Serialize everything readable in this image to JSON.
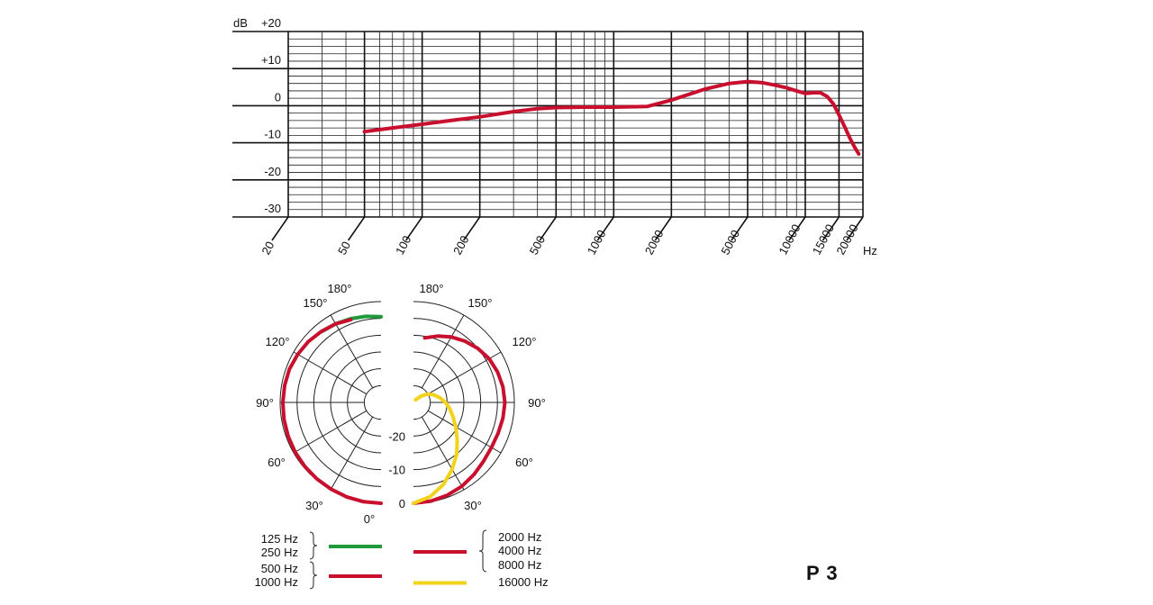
{
  "chart_data": [
    {
      "type": "line",
      "title": "",
      "ylabel": "dB",
      "xlabel": "Hz",
      "x_scale": "log",
      "xlim": [
        20,
        20000
      ],
      "ylim": [
        -30,
        20
      ],
      "y_ticks": [
        "+20",
        "+10",
        "0",
        "-10",
        "-20",
        "-30"
      ],
      "x_ticks": [
        "20",
        "50",
        "100",
        "200",
        "500",
        "1000",
        "2000",
        "5000",
        "10000",
        "15000",
        "20000"
      ],
      "grid": true,
      "series": [
        {
          "color": "#c8102e",
          "x": [
            50,
            70,
            100,
            150,
            200,
            300,
            400,
            500,
            700,
            1000,
            1500,
            2000,
            3000,
            4000,
            5000,
            6000,
            7000,
            8000,
            9000,
            10000,
            11000,
            12000,
            13000,
            14000,
            15000,
            16000,
            17000,
            18000,
            19000
          ],
          "y": [
            -7,
            -6,
            -5,
            -3.8,
            -3,
            -1.6,
            -0.8,
            -0.5,
            -0.4,
            -0.4,
            -0.2,
            1.5,
            4.5,
            6,
            6.5,
            6.2,
            5.5,
            4.8,
            4.0,
            3.3,
            3.5,
            3.5,
            2.5,
            0.5,
            -2.5,
            -5.5,
            -8.5,
            -11,
            -13
          ]
        }
      ]
    },
    {
      "type": "polar",
      "angle_labels_left": [
        "180°",
        "150°",
        "120°",
        "90°",
        "60°",
        "30°",
        "0°"
      ],
      "angle_labels_right": [
        "180°",
        "150°",
        "120°",
        "90°",
        "60°",
        "30°"
      ],
      "radial_labels": [
        "-20",
        "-10",
        "0"
      ],
      "series": [
        {
          "side": "left",
          "color": "#1f9a3a",
          "angles_deg": [
            140,
            150,
            160,
            170,
            180
          ],
          "level_db": [
            -2.5,
            -3,
            -3.5,
            -4,
            -4.5
          ]
        },
        {
          "side": "left",
          "color": "#c8102e",
          "angles_deg": [
            0,
            10,
            20,
            30,
            40,
            50,
            60,
            70,
            80,
            90,
            100,
            110,
            120,
            130,
            140,
            150,
            160
          ],
          "level_db": [
            0,
            0,
            -0.1,
            -0.2,
            -0.3,
            -0.4,
            -0.5,
            -0.6,
            -0.7,
            -0.8,
            -0.9,
            -1,
            -1.4,
            -1.8,
            -2.4,
            -3,
            -3.8
          ]
        },
        {
          "side": "right",
          "color": "#c8102e",
          "angles_deg": [
            0,
            10,
            20,
            30,
            40,
            50,
            60,
            70,
            80,
            90,
            100,
            110,
            120,
            130,
            140,
            150,
            160,
            170
          ],
          "level_db": [
            0,
            -0.2,
            -0.6,
            -1.2,
            -2,
            -2.8,
            -3.2,
            -3.2,
            -3,
            -2.8,
            -3,
            -3.4,
            -4,
            -5,
            -6.2,
            -7.5,
            -9,
            -10.5
          ]
        },
        {
          "side": "right",
          "color": "#f2d21a",
          "angles_deg": [
            0,
            10,
            20,
            30,
            40,
            50,
            60,
            70,
            80,
            90,
            100,
            110,
            120,
            130,
            140
          ],
          "level_db": [
            0,
            -1.5,
            -4,
            -7,
            -10,
            -13,
            -15.5,
            -17.5,
            -19,
            -20.5,
            -22,
            -23.5,
            -25,
            -27,
            -29
          ]
        }
      ],
      "legend": [
        {
          "labels": [
            "125 Hz",
            "250 Hz"
          ],
          "color": "#1f9a3a",
          "side": "left"
        },
        {
          "labels": [
            "500 Hz",
            "1000 Hz"
          ],
          "color": "#c8102e",
          "side": "left"
        },
        {
          "labels": [
            "2000 Hz",
            "4000 Hz",
            "8000 Hz"
          ],
          "color": "#c8102e",
          "side": "right"
        },
        {
          "labels": [
            "16000 Hz"
          ],
          "color": "#f2d21a",
          "side": "right"
        }
      ]
    }
  ],
  "page": {
    "model": "P 3"
  }
}
